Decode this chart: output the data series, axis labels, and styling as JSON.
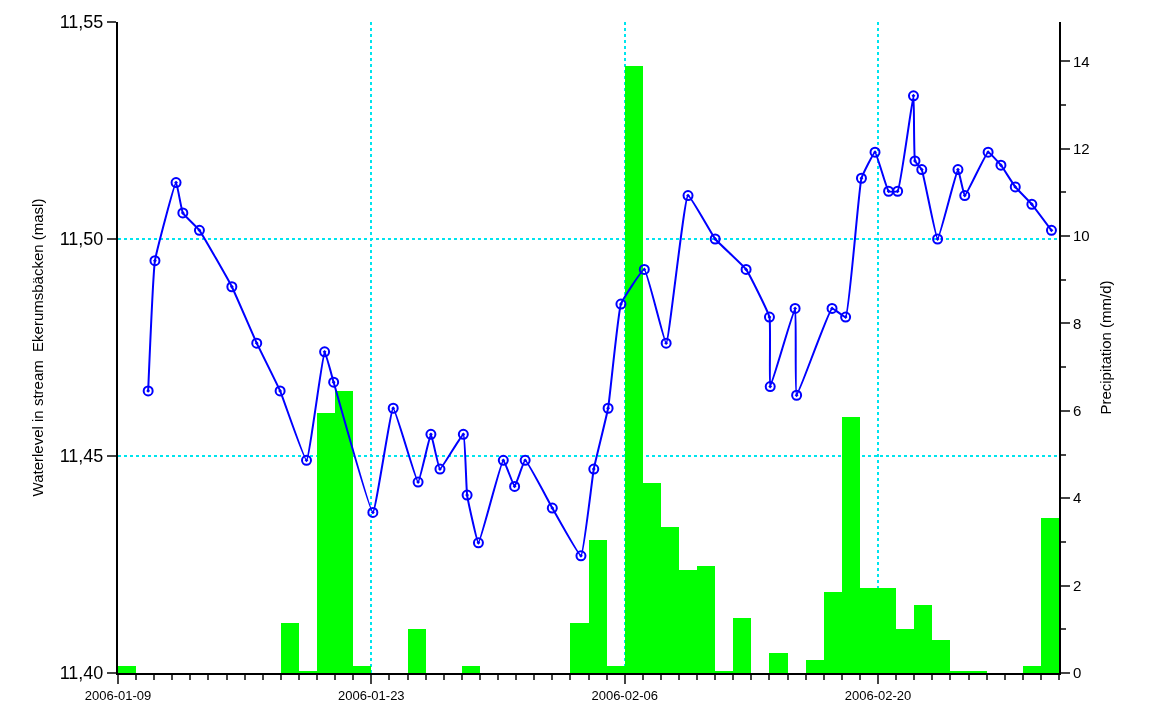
{
  "chart_data": {
    "type": "line",
    "ylabel": "Waterlevel in stream  Ekerumsbäcken (masl)",
    "y2label": "Precipitation (mm/d)",
    "xlim": [
      "2006-01-09",
      "2006-03-02"
    ],
    "xticks": [
      "2006-01-09",
      "2006-01-23",
      "2006-02-06",
      "2006-02-20"
    ],
    "ylim": [
      11.4,
      11.55
    ],
    "yticks": [
      {
        "value": 11.4,
        "label": "11,40"
      },
      {
        "value": 11.45,
        "label": "11,45"
      },
      {
        "value": 11.5,
        "label": "11,50"
      },
      {
        "value": 11.55,
        "label": "11,55"
      }
    ],
    "y2lim": [
      0,
      14.9
    ],
    "y2ticks": [
      0,
      2,
      4,
      6,
      8,
      10,
      12,
      14
    ],
    "grid": true,
    "series": [
      {
        "type": "bar",
        "axis": "y2",
        "color": "#00ff00",
        "x": [
          "2006-01-09T12:00",
          "2006-01-10T12:00",
          "2006-01-11T12:00",
          "2006-01-12T12:00",
          "2006-01-13T12:00",
          "2006-01-14T12:00",
          "2006-01-15T12:00",
          "2006-01-16T12:00",
          "2006-01-17T12:00",
          "2006-01-18T12:00",
          "2006-01-19T12:00",
          "2006-01-20T12:00",
          "2006-01-21T12:00",
          "2006-01-22T12:00",
          "2006-01-23T12:00",
          "2006-01-24T12:00",
          "2006-01-25T12:00",
          "2006-01-26T12:00",
          "2006-01-27T12:00",
          "2006-01-28T12:00",
          "2006-01-29T12:00",
          "2006-01-30T12:00",
          "2006-01-31T12:00",
          "2006-02-01T12:00",
          "2006-02-02T12:00",
          "2006-02-03T12:00",
          "2006-02-04T12:00",
          "2006-02-05T12:00",
          "2006-02-06T12:00",
          "2006-02-07T12:00",
          "2006-02-08T12:00",
          "2006-02-09T12:00",
          "2006-02-10T12:00",
          "2006-02-11T12:00",
          "2006-02-12T12:00",
          "2006-02-13T12:00",
          "2006-02-14T12:00",
          "2006-02-15T12:00",
          "2006-02-16T12:00",
          "2006-02-17T12:00",
          "2006-02-18T12:00",
          "2006-02-19T12:00",
          "2006-02-20T12:00",
          "2006-02-21T12:00",
          "2006-02-22T12:00",
          "2006-02-23T12:00",
          "2006-02-24T12:00",
          "2006-02-25T12:00",
          "2006-02-26T12:00",
          "2006-02-27T12:00",
          "2006-02-28T12:00",
          "2006-03-01T12:00"
        ],
        "values": [
          0.15,
          0,
          0,
          0,
          0,
          0,
          0,
          0,
          0,
          1.15,
          0.05,
          5.95,
          6.45,
          0.15,
          0,
          0,
          1.0,
          0,
          0,
          0.15,
          0,
          0,
          0,
          0,
          0,
          1.15,
          3.05,
          0.15,
          13.9,
          4.35,
          3.35,
          2.35,
          2.45,
          0.05,
          1.25,
          0,
          0.45,
          0,
          0.3,
          1.85,
          5.85,
          1.95,
          1.95,
          1.0,
          1.55,
          0.75,
          0.05,
          0.05,
          0,
          0,
          0.15,
          3.55
        ]
      },
      {
        "marker": "circle",
        "color": "#0000ff",
        "x": [
          "2006-01-10T16:00",
          "2006-01-11T01:00",
          "2006-01-12T05:00",
          "2006-01-12T14:00",
          "2006-01-13T12:00",
          "2006-01-15T07:00",
          "2006-01-16T16:00",
          "2006-01-17T23:00",
          "2006-01-19T10:00",
          "2006-01-20T10:00",
          "2006-01-20T22:00",
          "2006-01-23T02:00",
          "2006-01-24T05:00",
          "2006-01-25T14:00",
          "2006-01-26T07:00",
          "2006-01-26T19:00",
          "2006-01-28T02:00",
          "2006-01-28T07:00",
          "2006-01-28T22:00",
          "2006-01-30T07:00",
          "2006-01-30T22:00",
          "2006-01-31T12:00",
          "2006-02-02T00:00",
          "2006-02-03T14:00",
          "2006-02-04T07:00",
          "2006-02-05T02:00",
          "2006-02-05T19:00",
          "2006-02-07T02:00",
          "2006-02-08T07:00",
          "2006-02-09T12:00",
          "2006-02-11T00:00",
          "2006-02-12T17:00",
          "2006-02-14T00:00",
          "2006-02-14T01:00",
          "2006-02-15T10:00",
          "2006-02-15T12:00",
          "2006-02-17T11:00",
          "2006-02-18T05:00",
          "2006-02-19T02:00",
          "2006-02-19T20:00",
          "2006-02-20T14:00",
          "2006-02-21T02:00",
          "2006-02-21T23:00",
          "2006-02-22T01:00",
          "2006-02-22T10:00",
          "2006-02-23T07:00",
          "2006-02-24T10:00",
          "2006-02-24T19:00",
          "2006-02-26T02:00",
          "2006-02-26T19:00",
          "2006-02-27T14:00",
          "2006-02-28T12:00",
          "2006-03-01T14:00"
        ],
        "values": [
          11.465,
          11.495,
          11.513,
          11.506,
          11.502,
          11.489,
          11.476,
          11.465,
          11.449,
          11.474,
          11.467,
          11.437,
          11.461,
          11.444,
          11.455,
          11.447,
          11.455,
          11.441,
          11.43,
          11.449,
          11.443,
          11.449,
          11.438,
          11.427,
          11.447,
          11.461,
          11.485,
          11.493,
          11.476,
          11.51,
          11.5,
          11.493,
          11.482,
          11.466,
          11.484,
          11.464,
          11.484,
          11.482,
          11.514,
          11.52,
          11.511,
          11.511,
          11.533,
          11.518,
          11.516,
          11.5,
          11.516,
          11.51,
          11.52,
          11.517,
          11.512,
          11.508,
          11.502
        ]
      }
    ]
  }
}
